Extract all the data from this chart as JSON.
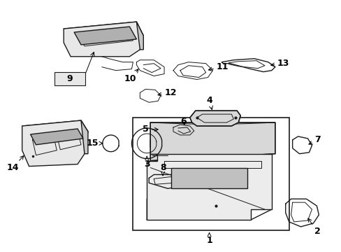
{
  "background_color": "#ffffff",
  "line_color": "#1a1a1a",
  "label_color": "#000000",
  "fig_width": 4.89,
  "fig_height": 3.6,
  "dpi": 100,
  "font_size": 9,
  "font_weight": "bold"
}
